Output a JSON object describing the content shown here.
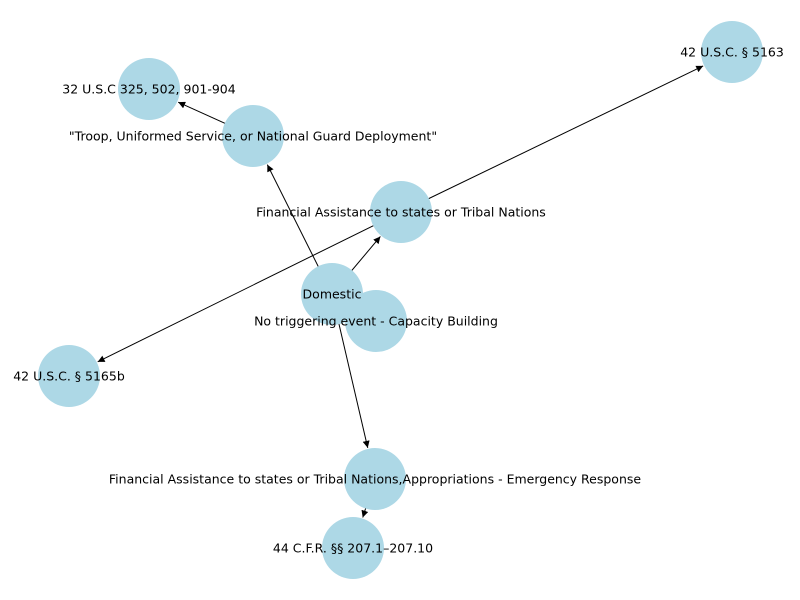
{
  "graph": {
    "node_color": "#add8e6",
    "edge_color": "#000000",
    "directed": true,
    "nodes": [
      {
        "id": "domestic",
        "label": "Domestic"
      },
      {
        "id": "fin_assist",
        "label": "Financial Assistance to states or Tribal Nations"
      },
      {
        "id": "troop",
        "label": "\"Troop, Uniformed Service, or National Guard Deployment\""
      },
      {
        "id": "fin_approp",
        "label": "Financial Assistance to states or Tribal Nations,Appropriations - Emergency Response"
      },
      {
        "id": "no_trigger",
        "label": "No triggering event - Capacity Building"
      },
      {
        "id": "usc32",
        "label": "32 U.S.C 325, 502, 901-904"
      },
      {
        "id": "usc5163",
        "label": "42 U.S.C. §  5163"
      },
      {
        "id": "usc5165b",
        "label": "42 U.S.C. § 5165b"
      },
      {
        "id": "cfr44",
        "label": "44 C.F.R. §§ 207.1–207.10"
      }
    ],
    "edges": [
      {
        "from": "domestic",
        "to": "fin_assist"
      },
      {
        "from": "domestic",
        "to": "troop"
      },
      {
        "from": "domestic",
        "to": "fin_approp"
      },
      {
        "from": "troop",
        "to": "usc32"
      },
      {
        "from": "fin_assist",
        "to": "usc5163"
      },
      {
        "from": "fin_assist",
        "to": "usc5165b"
      },
      {
        "from": "fin_approp",
        "to": "cfr44"
      }
    ]
  }
}
